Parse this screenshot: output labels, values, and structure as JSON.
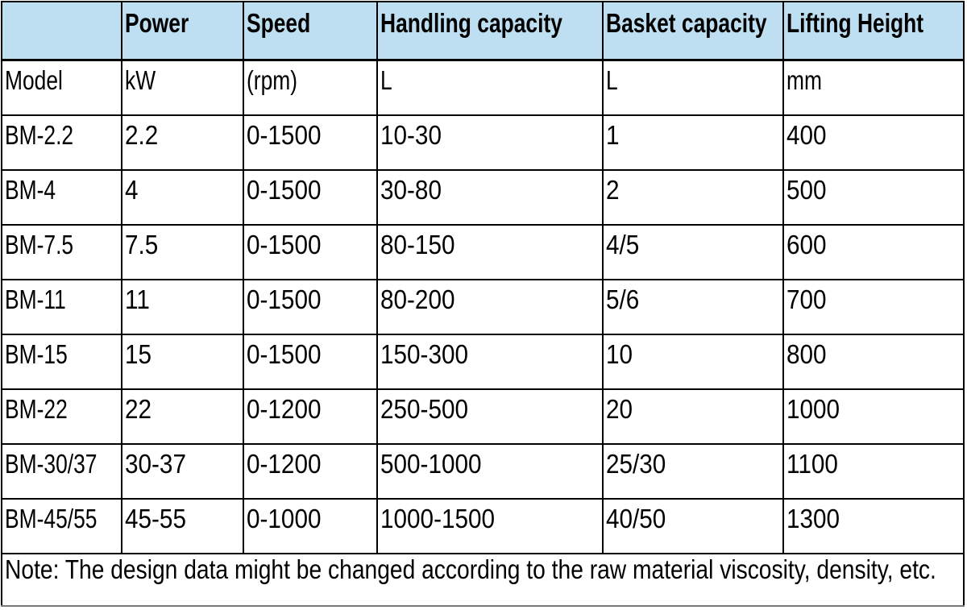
{
  "table": {
    "header_bg": "#BEDFF1",
    "header": [
      "",
      "Power",
      "Speed",
      "Handling capacity",
      "Basket capacity",
      "Lifting Height"
    ],
    "units": [
      "Model",
      "kW",
      "(rpm)",
      "L",
      "L",
      "mm"
    ],
    "rows": [
      [
        "BM-2.2",
        "2.2",
        "0-1500",
        "10-30",
        "1",
        "400"
      ],
      [
        "BM-4",
        "4",
        "0-1500",
        "30-80",
        "2",
        "500"
      ],
      [
        "BM-7.5",
        "7.5",
        "0-1500",
        "80-150",
        "4/5",
        "600"
      ],
      [
        "BM-11",
        "11",
        "0-1500",
        "80-200",
        "5/6",
        "700"
      ],
      [
        "BM-15",
        "15",
        "0-1500",
        "150-300",
        "10",
        "800"
      ],
      [
        "BM-22",
        "22",
        "0-1200",
        "250-500",
        "20",
        "1000"
      ],
      [
        "BM-30/37",
        "30-37",
        "0-1200",
        "500-1000",
        "25/30",
        "1100"
      ],
      [
        "BM-45/55",
        "45-55",
        "0-1000",
        "1000-1500",
        "40/50",
        "1300"
      ]
    ],
    "note": "Note: The design data might be changed according to the raw material viscosity, density, etc."
  }
}
